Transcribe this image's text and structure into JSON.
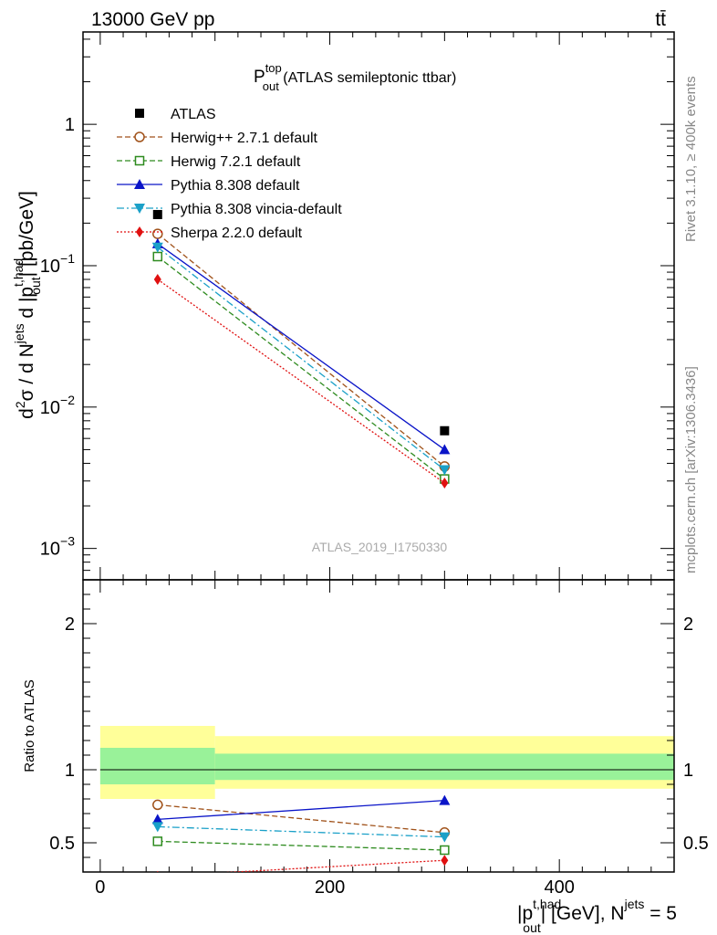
{
  "header": {
    "energy_label": "13000 GeV pp",
    "process_label": "tt̄"
  },
  "title": {
    "main": "P",
    "sup": "top",
    "sub": "out",
    "rest": " (ATLAS semileptonic ttbar)"
  },
  "side_labels": {
    "rivet": "Rivet 3.1.10, ≥ 400k events",
    "mcplots": "mcplots.cern.ch [arXiv:1306.3436]"
  },
  "watermark": "ATLAS_2019_I1750330",
  "ratio_ylabel": "Ratio to ATLAS",
  "axis_labels": {
    "y_top": [
      "d",
      "2",
      "σ / d N",
      "jets",
      " d |p",
      "t,had",
      "out",
      "| [pb/GeV]"
    ],
    "x": [
      "|p",
      "t,had",
      "out",
      "| [GeV], N",
      "jets",
      " = 5"
    ]
  },
  "colors": {
    "data": "#000000",
    "herwigpp": "#a0521a",
    "herwig7": "#2e8b1f",
    "pythia": "#0a14c8",
    "vincia": "#1aa0c8",
    "sherpa": "#e01010",
    "band_inner": "#99f299",
    "band_outer": "#ffff99"
  },
  "chart_data": [
    {
      "type": "scatter",
      "panel": "main",
      "title": "P_out^top (ATLAS semileptonic ttbar)",
      "ylabel": "d²σ / d N^jets d |p_out^t,had| [pb/GeV]",
      "yscale": "log",
      "ylim": [
        0.0006,
        4.5
      ],
      "xlim": [
        -15,
        500
      ],
      "y_ticks": [
        {
          "value": 0.001,
          "base": "10",
          "exp": "−3"
        },
        {
          "value": 0.01,
          "base": "10",
          "exp": "−2"
        },
        {
          "value": 0.1,
          "base": "10",
          "exp": "−1"
        },
        {
          "value": 1,
          "base": "1",
          "exp": ""
        }
      ],
      "x": [
        50,
        300
      ],
      "legend_position": "top-left",
      "series": [
        {
          "name": "ATLAS",
          "key": "data",
          "marker": "square-filled",
          "line": "none",
          "values": [
            0.23,
            0.0068
          ]
        },
        {
          "name": "Herwig++ 2.7.1 default",
          "key": "herwigpp",
          "marker": "circle-open",
          "line": "dashed",
          "values": [
            0.168,
            0.0038
          ]
        },
        {
          "name": "Herwig 7.2.1 default",
          "key": "herwig7",
          "marker": "square-open",
          "line": "dashed",
          "values": [
            0.116,
            0.0031
          ]
        },
        {
          "name": "Pythia 8.308 default",
          "key": "pythia",
          "marker": "triangle-up",
          "line": "solid",
          "values": [
            0.143,
            0.005
          ]
        },
        {
          "name": "Pythia 8.308 vincia-default",
          "key": "vincia",
          "marker": "triangle-down",
          "line": "dashdot",
          "values": [
            0.135,
            0.0036
          ]
        },
        {
          "name": "Sherpa 2.2.0 default",
          "key": "sherpa",
          "marker": "diamond",
          "line": "dotted",
          "values": [
            0.08,
            0.0029
          ]
        }
      ]
    },
    {
      "type": "line",
      "panel": "ratio",
      "ylabel": "Ratio to ATLAS",
      "xlabel": "|p_out^t,had| [GeV], N^jets = 5",
      "ylim": [
        0.3,
        2.3
      ],
      "xlim": [
        -15,
        500
      ],
      "y_ticks": [
        0.5,
        1,
        2
      ],
      "x_ticks": [
        0,
        200,
        400
      ],
      "x": [
        50,
        300
      ],
      "bands": [
        {
          "x_range": [
            0,
            100
          ],
          "inner": [
            0.9,
            1.15
          ],
          "outer": [
            0.8,
            1.3
          ]
        },
        {
          "x_range": [
            100,
            500
          ],
          "inner": [
            0.93,
            1.11
          ],
          "outer": [
            0.87,
            1.23
          ]
        }
      ],
      "series": [
        {
          "name": "Herwig++ 2.7.1 default",
          "key": "herwigpp",
          "values": [
            0.76,
            0.57
          ]
        },
        {
          "name": "Herwig 7.2.1 default",
          "key": "herwig7",
          "values": [
            0.51,
            0.45
          ]
        },
        {
          "name": "Pythia 8.308 default",
          "key": "pythia",
          "values": [
            0.66,
            0.79
          ]
        },
        {
          "name": "Pythia 8.308 vincia-default",
          "key": "vincia",
          "values": [
            0.61,
            0.54
          ]
        },
        {
          "name": "Sherpa 2.2.0 default",
          "key": "sherpa",
          "values": [
            0.27,
            0.38
          ]
        }
      ]
    }
  ]
}
